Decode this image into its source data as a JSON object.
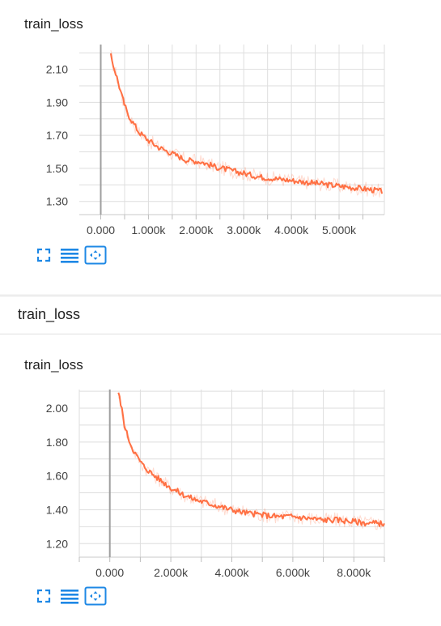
{
  "section": {
    "title": "train_loss"
  },
  "charts": [
    {
      "card_title": "train_loss",
      "toolbar": {
        "icons": [
          "fullscreen-icon",
          "data-selection-icon",
          "fit-domain-icon"
        ]
      },
      "chart_data": {
        "type": "line",
        "title": "train_loss",
        "xlabel": "",
        "ylabel": "",
        "x_ticks": [
          "0.000",
          "1.000k",
          "2.000k",
          "3.000k",
          "4.000k",
          "5.000k"
        ],
        "y_ticks": [
          "2.10",
          "1.90",
          "1.70",
          "1.50",
          "1.30"
        ],
        "xlim": [
          -450,
          5950
        ],
        "ylim": [
          1.22,
          2.25
        ],
        "grid": true,
        "series": [
          {
            "color": "#ff7043",
            "x": [
              210,
              350,
              450,
              550,
              650,
              800,
              1000,
              1200,
              1500,
              1800,
              2100,
              2400,
              2700,
              3000,
              3300,
              3600,
              3900,
              4200,
              4500,
              4800,
              5100,
              5400,
              5700,
              5900
            ],
            "y": [
              2.18,
              2.04,
              1.93,
              1.84,
              1.79,
              1.72,
              1.67,
              1.63,
              1.59,
              1.55,
              1.54,
              1.51,
              1.49,
              1.47,
              1.45,
              1.44,
              1.43,
              1.42,
              1.41,
              1.4,
              1.39,
              1.38,
              1.37,
              1.36
            ]
          }
        ]
      }
    },
    {
      "card_title": "train_loss",
      "toolbar": {
        "icons": [
          "fullscreen-icon",
          "data-selection-icon",
          "fit-domain-icon"
        ]
      },
      "chart_data": {
        "type": "line",
        "title": "train_loss",
        "xlabel": "",
        "ylabel": "",
        "x_ticks": [
          "0.000",
          "2.000k",
          "4.000k",
          "6.000k",
          "8.000k"
        ],
        "y_ticks": [
          "2.00",
          "1.80",
          "1.60",
          "1.40",
          "1.20"
        ],
        "xlim": [
          -1000,
          9000
        ],
        "ylim": [
          1.12,
          2.11
        ],
        "grid": true,
        "series": [
          {
            "color": "#ff7043",
            "x": [
              280,
              400,
              500,
              700,
              900,
              1100,
              1400,
              1700,
              2000,
              2400,
              2800,
              3200,
              3600,
              4000,
              4500,
              5000,
              5500,
              6000,
              6500,
              7000,
              7500,
              8000,
              8500,
              9000
            ],
            "y": [
              2.09,
              1.99,
              1.88,
              1.78,
              1.71,
              1.66,
              1.61,
              1.57,
              1.53,
              1.49,
              1.46,
              1.44,
              1.42,
              1.4,
              1.38,
              1.37,
              1.36,
              1.36,
              1.35,
              1.34,
              1.34,
              1.33,
              1.32,
              1.32
            ]
          }
        ]
      }
    }
  ]
}
